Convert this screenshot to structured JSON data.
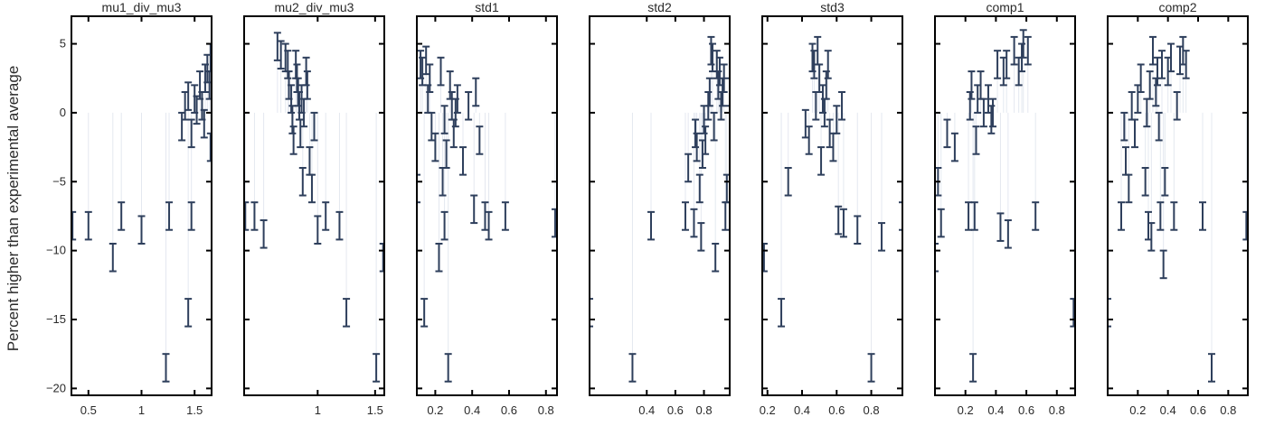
{
  "figure": {
    "ylabel": "Percent higher than experimental average",
    "marker_color": "#2e3f5c",
    "guide_color": "#e4e8f0"
  },
  "chart_data": {
    "type": "scatter",
    "ylim": [
      -20.5,
      7
    ],
    "yticks": [
      5,
      0,
      -5,
      -10,
      -15,
      -20
    ],
    "y_tick_labels": [
      "5",
      "0",
      "−5",
      "−10",
      "−15",
      "−20"
    ],
    "grid": false,
    "error_bar_halfwidth": 1.0,
    "panels": [
      {
        "title": "mu1_div_mu3",
        "xlim": [
          0.34,
          1.66
        ],
        "xticks": [
          0.5,
          1,
          1.5
        ],
        "xtick_labels": [
          "0.5",
          "1",
          "1.5"
        ],
        "points": [
          [
            0.35,
            -8.2
          ],
          [
            0.5,
            -8.2
          ],
          [
            0.73,
            -10.5
          ],
          [
            0.81,
            -7.5
          ],
          [
            1.0,
            -8.5
          ],
          [
            1.26,
            -7.5
          ],
          [
            1.23,
            -18.5
          ],
          [
            1.44,
            -14.5
          ],
          [
            1.47,
            -7.5
          ],
          [
            1.38,
            -1.0
          ],
          [
            1.41,
            0.5
          ],
          [
            1.44,
            1.2
          ],
          [
            1.47,
            -1.5
          ],
          [
            1.5,
            1.0
          ],
          [
            1.52,
            0.2
          ],
          [
            1.55,
            2.0
          ],
          [
            1.57,
            0.5
          ],
          [
            1.59,
            -0.8
          ],
          [
            1.6,
            2.5
          ],
          [
            1.62,
            3.2
          ],
          [
            1.64,
            2.0
          ],
          [
            1.65,
            4.0
          ],
          [
            1.65,
            -2.5
          ]
        ]
      },
      {
        "title": "mu2_div_mu3",
        "xlim": [
          0.36,
          1.58
        ],
        "xticks": [
          1,
          1.5
        ],
        "xtick_labels": [
          "1",
          "1.5"
        ],
        "points": [
          [
            0.37,
            -7.5
          ],
          [
            0.45,
            -7.5
          ],
          [
            0.53,
            -8.8
          ],
          [
            0.65,
            4.8
          ],
          [
            0.68,
            4.2
          ],
          [
            0.72,
            4.0
          ],
          [
            0.74,
            3.5
          ],
          [
            0.75,
            2.0
          ],
          [
            0.77,
            1.0
          ],
          [
            0.78,
            -0.5
          ],
          [
            0.79,
            -2.0
          ],
          [
            0.81,
            3.5
          ],
          [
            0.82,
            2.5
          ],
          [
            0.83,
            1.5
          ],
          [
            0.84,
            0.5
          ],
          [
            0.85,
            -1.5
          ],
          [
            0.86,
            1.0
          ],
          [
            0.87,
            -5.0
          ],
          [
            0.88,
            0.0
          ],
          [
            0.9,
            3.0
          ],
          [
            0.91,
            2.0
          ],
          [
            0.93,
            -3.5
          ],
          [
            0.95,
            -5.5
          ],
          [
            0.97,
            -1.0
          ],
          [
            1.0,
            -8.5
          ],
          [
            1.07,
            -7.5
          ],
          [
            1.19,
            -8.2
          ],
          [
            1.25,
            -14.5
          ],
          [
            1.51,
            -18.5
          ],
          [
            1.57,
            -10.5
          ]
        ]
      },
      {
        "title": "std1",
        "xlim": [
          0.1,
          0.86
        ],
        "xticks": [
          0.2,
          0.4,
          0.6,
          0.8
        ],
        "xtick_labels": [
          "0.2",
          "0.4",
          "0.6",
          "0.8"
        ],
        "points": [
          [
            0.1,
            -5.5
          ],
          [
            0.12,
            3.5
          ],
          [
            0.13,
            3.0
          ],
          [
            0.14,
            -14.5
          ],
          [
            0.15,
            3.8
          ],
          [
            0.16,
            1.0
          ],
          [
            0.17,
            2.5
          ],
          [
            0.18,
            -1.0
          ],
          [
            0.2,
            -2.5
          ],
          [
            0.22,
            -10.5
          ],
          [
            0.23,
            3.0
          ],
          [
            0.24,
            -5.0
          ],
          [
            0.25,
            -0.5
          ],
          [
            0.25,
            -8.2
          ],
          [
            0.26,
            -3.0
          ],
          [
            0.27,
            -18.5
          ],
          [
            0.28,
            2.0
          ],
          [
            0.29,
            0.5
          ],
          [
            0.3,
            -1.5
          ],
          [
            0.31,
            0.0
          ],
          [
            0.32,
            1.0
          ],
          [
            0.35,
            -3.5
          ],
          [
            0.38,
            0.5
          ],
          [
            0.41,
            -7.0
          ],
          [
            0.42,
            1.5
          ],
          [
            0.44,
            -2.0
          ],
          [
            0.47,
            -7.5
          ],
          [
            0.49,
            -8.2
          ],
          [
            0.58,
            -7.5
          ],
          [
            0.85,
            -8.0
          ]
        ]
      },
      {
        "title": "std2",
        "xlim": [
          0.0,
          0.98
        ],
        "xticks": [
          0.4,
          0.6,
          0.8
        ],
        "xtick_labels": [
          "0.4",
          "0.6",
          "0.8"
        ],
        "points": [
          [
            0.0,
            -14.5
          ],
          [
            0.3,
            -18.5
          ],
          [
            0.43,
            -8.2
          ],
          [
            0.67,
            -7.5
          ],
          [
            0.69,
            -4.0
          ],
          [
            0.73,
            -8.0
          ],
          [
            0.74,
            -1.5
          ],
          [
            0.75,
            -2.5
          ],
          [
            0.77,
            -5.5
          ],
          [
            0.78,
            -9.0
          ],
          [
            0.79,
            -3.0
          ],
          [
            0.8,
            -0.5
          ],
          [
            0.81,
            -2.0
          ],
          [
            0.83,
            0.5
          ],
          [
            0.84,
            1.5
          ],
          [
            0.85,
            4.5
          ],
          [
            0.86,
            4.0
          ],
          [
            0.87,
            -1.0
          ],
          [
            0.88,
            -10.5
          ],
          [
            0.89,
            3.5
          ],
          [
            0.9,
            2.0
          ],
          [
            0.91,
            3.0
          ],
          [
            0.92,
            0.5
          ],
          [
            0.93,
            1.5
          ],
          [
            0.94,
            2.5
          ],
          [
            0.95,
            -7.5
          ],
          [
            0.96,
            -5.5
          ],
          [
            0.98,
            1.5
          ]
        ]
      },
      {
        "title": "std3",
        "xlim": [
          0.17,
          0.98
        ],
        "xticks": [
          0.2,
          0.4,
          0.6,
          0.8
        ],
        "xtick_labels": [
          "0.2",
          "0.4",
          "0.6",
          "0.8"
        ],
        "points": [
          [
            0.18,
            -10.5
          ],
          [
            0.28,
            -14.5
          ],
          [
            0.32,
            -5.0
          ],
          [
            0.42,
            -0.8
          ],
          [
            0.44,
            -2.0
          ],
          [
            0.46,
            4.0
          ],
          [
            0.47,
            3.5
          ],
          [
            0.48,
            0.5
          ],
          [
            0.49,
            4.5
          ],
          [
            0.5,
            2.5
          ],
          [
            0.51,
            -3.5
          ],
          [
            0.52,
            1.0
          ],
          [
            0.53,
            0.0
          ],
          [
            0.54,
            2.0
          ],
          [
            0.55,
            3.5
          ],
          [
            0.56,
            -1.5
          ],
          [
            0.58,
            -2.5
          ],
          [
            0.6,
            -0.5
          ],
          [
            0.61,
            -7.8
          ],
          [
            0.63,
            0.5
          ],
          [
            0.64,
            -8.0
          ],
          [
            0.72,
            -8.5
          ],
          [
            0.8,
            -18.5
          ],
          [
            0.86,
            -9.0
          ],
          [
            0.98,
            -7.5
          ]
        ]
      },
      {
        "title": "comp1",
        "xlim": [
          0.0,
          0.92
        ],
        "xticks": [
          0.2,
          0.4,
          0.6,
          0.8
        ],
        "xtick_labels": [
          "0.2",
          "0.4",
          "0.6",
          "0.8"
        ],
        "points": [
          [
            0.0,
            -10.5
          ],
          [
            0.02,
            -5.0
          ],
          [
            0.04,
            -8.0
          ],
          [
            0.08,
            -1.5
          ],
          [
            0.13,
            -2.5
          ],
          [
            0.22,
            -7.5
          ],
          [
            0.23,
            0.5
          ],
          [
            0.24,
            2.0
          ],
          [
            0.25,
            -18.5
          ],
          [
            0.26,
            -7.5
          ],
          [
            0.27,
            -2.0
          ],
          [
            0.28,
            1.0
          ],
          [
            0.3,
            2.0
          ],
          [
            0.32,
            0.0
          ],
          [
            0.35,
            1.0
          ],
          [
            0.37,
            -0.5
          ],
          [
            0.38,
            0.0
          ],
          [
            0.41,
            3.5
          ],
          [
            0.43,
            -8.3
          ],
          [
            0.45,
            3.0
          ],
          [
            0.47,
            3.5
          ],
          [
            0.48,
            -8.8
          ],
          [
            0.52,
            4.5
          ],
          [
            0.55,
            3.0
          ],
          [
            0.57,
            4.0
          ],
          [
            0.58,
            5.0
          ],
          [
            0.61,
            4.5
          ],
          [
            0.66,
            -7.5
          ],
          [
            0.91,
            -14.5
          ]
        ]
      },
      {
        "title": "comp2",
        "xlim": [
          0.0,
          0.93
        ],
        "xticks": [
          0.2,
          0.4,
          0.6,
          0.8
        ],
        "xtick_labels": [
          "0.2",
          "0.4",
          "0.6",
          "0.8"
        ],
        "points": [
          [
            0.0,
            -14.5
          ],
          [
            0.09,
            -7.5
          ],
          [
            0.11,
            -1.0
          ],
          [
            0.12,
            -3.5
          ],
          [
            0.14,
            -5.5
          ],
          [
            0.16,
            0.5
          ],
          [
            0.18,
            -1.5
          ],
          [
            0.2,
            1.0
          ],
          [
            0.22,
            2.5
          ],
          [
            0.25,
            -5.0
          ],
          [
            0.26,
            0.0
          ],
          [
            0.27,
            -8.2
          ],
          [
            0.28,
            2.0
          ],
          [
            0.29,
            -9.0
          ],
          [
            0.3,
            4.5
          ],
          [
            0.32,
            1.5
          ],
          [
            0.33,
            3.0
          ],
          [
            0.34,
            -1.0
          ],
          [
            0.35,
            -7.5
          ],
          [
            0.36,
            3.5
          ],
          [
            0.37,
            -11.0
          ],
          [
            0.38,
            -5.0
          ],
          [
            0.4,
            3.0
          ],
          [
            0.42,
            4.0
          ],
          [
            0.44,
            -7.5
          ],
          [
            0.46,
            0.5
          ],
          [
            0.48,
            3.8
          ],
          [
            0.5,
            4.5
          ],
          [
            0.52,
            3.5
          ],
          [
            0.63,
            -7.5
          ],
          [
            0.69,
            -18.5
          ],
          [
            0.92,
            -8.2
          ]
        ]
      }
    ]
  }
}
